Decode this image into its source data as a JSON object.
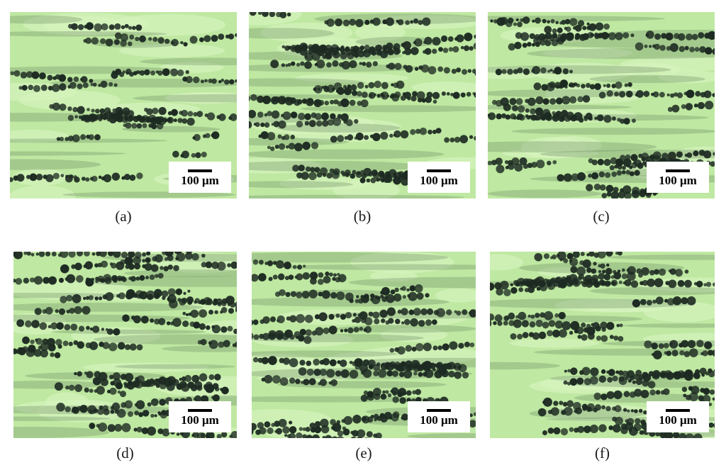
{
  "figure": {
    "panels": [
      {
        "id": "a",
        "caption": "(a)",
        "scale_label": "100 μm"
      },
      {
        "id": "b",
        "caption": "(b)",
        "scale_label": "100 μm"
      },
      {
        "id": "c",
        "caption": "(c)",
        "scale_label": "100 μm"
      },
      {
        "id": "d",
        "caption": "(d)",
        "scale_label": "100 μm"
      },
      {
        "id": "e",
        "caption": "(e)",
        "scale_label": "100 μm"
      },
      {
        "id": "f",
        "caption": "(f)",
        "scale_label": "100 μm"
      }
    ],
    "colors": {
      "background_green": "#bfe8a2",
      "light_green": "#d6f3bd",
      "dark_band": "#6f8f66",
      "particle": "#1d2a22"
    }
  }
}
